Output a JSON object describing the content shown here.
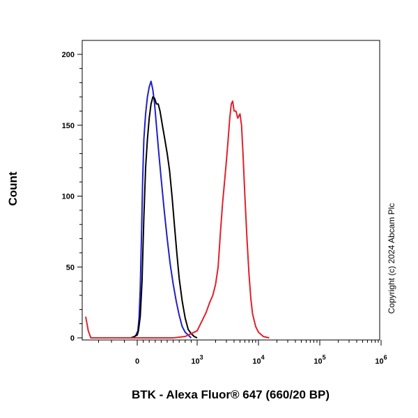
{
  "chart_data": {
    "type": "line",
    "xlabel": "BTK - Alexa Fluor® 647 (660/20 BP)",
    "ylabel": "Count",
    "ylim": [
      0,
      200
    ],
    "xscale": "biexponential",
    "xlim": [
      -400,
      1000000
    ],
    "x_ticks": [
      {
        "value": 0,
        "base": "0",
        "exp": ""
      },
      {
        "value": 1000,
        "base": "10",
        "exp": "3"
      },
      {
        "value": 10000,
        "base": "10",
        "exp": "4"
      },
      {
        "value": 100000,
        "base": "10",
        "exp": "5"
      },
      {
        "value": 1000000,
        "base": "10",
        "exp": "6"
      }
    ],
    "y_ticks": [
      0,
      50,
      100,
      150,
      200
    ],
    "grid": false,
    "legend": "none",
    "series": [
      {
        "color": "#1f1fc8",
        "points": [
          [
            -30,
            0
          ],
          [
            -10,
            2
          ],
          [
            10,
            5
          ],
          [
            30,
            14
          ],
          [
            50,
            35
          ],
          [
            70,
            70
          ],
          [
            90,
            110
          ],
          [
            110,
            140
          ],
          [
            140,
            158
          ],
          [
            170,
            170
          ],
          [
            200,
            177
          ],
          [
            230,
            181
          ],
          [
            260,
            175
          ],
          [
            290,
            165
          ],
          [
            320,
            150
          ],
          [
            360,
            130
          ],
          [
            400,
            112
          ],
          [
            450,
            90
          ],
          [
            500,
            70
          ],
          [
            550,
            52
          ],
          [
            600,
            38
          ],
          [
            650,
            26
          ],
          [
            700,
            16
          ],
          [
            750,
            8
          ],
          [
            800,
            4
          ],
          [
            850,
            2
          ],
          [
            900,
            0
          ]
        ]
      },
      {
        "color": "#000000",
        "points": [
          [
            -50,
            0
          ],
          [
            -20,
            1
          ],
          [
            0,
            2
          ],
          [
            20,
            5
          ],
          [
            50,
            15
          ],
          [
            80,
            40
          ],
          [
            110,
            85
          ],
          [
            140,
            120
          ],
          [
            170,
            140
          ],
          [
            200,
            155
          ],
          [
            230,
            165
          ],
          [
            260,
            170
          ],
          [
            290,
            169
          ],
          [
            320,
            165
          ],
          [
            350,
            165
          ],
          [
            380,
            160
          ],
          [
            420,
            150
          ],
          [
            460,
            140
          ],
          [
            500,
            130
          ],
          [
            540,
            118
          ],
          [
            580,
            100
          ],
          [
            620,
            80
          ],
          [
            660,
            60
          ],
          [
            700,
            42
          ],
          [
            750,
            26
          ],
          [
            800,
            14
          ],
          [
            850,
            6
          ],
          [
            900,
            3
          ],
          [
            950,
            1
          ],
          [
            1000,
            0
          ]
        ]
      },
      {
        "color": "#e0202a",
        "points": [
          [
            -400,
            15
          ],
          [
            -380,
            5
          ],
          [
            -360,
            0
          ],
          [
            -200,
            0
          ],
          [
            0,
            0
          ],
          [
            300,
            0
          ],
          [
            600,
            0
          ],
          [
            800,
            1
          ],
          [
            1000,
            5
          ],
          [
            1200,
            12
          ],
          [
            1400,
            18
          ],
          [
            1600,
            25
          ],
          [
            1800,
            30
          ],
          [
            2000,
            38
          ],
          [
            2200,
            50
          ],
          [
            2400,
            75
          ],
          [
            2600,
            95
          ],
          [
            2800,
            110
          ],
          [
            3000,
            125
          ],
          [
            3200,
            140
          ],
          [
            3400,
            155
          ],
          [
            3600,
            165
          ],
          [
            3800,
            167
          ],
          [
            4000,
            160
          ],
          [
            4300,
            160
          ],
          [
            4600,
            155
          ],
          [
            5000,
            158
          ],
          [
            5300,
            150
          ],
          [
            5600,
            130
          ],
          [
            6000,
            100
          ],
          [
            6500,
            70
          ],
          [
            7000,
            45
          ],
          [
            7500,
            28
          ],
          [
            8000,
            17
          ],
          [
            9000,
            8
          ],
          [
            10000,
            4
          ],
          [
            12000,
            1
          ],
          [
            15000,
            0
          ]
        ]
      }
    ]
  },
  "copyright": "Copyright (c) 2024 Abcam Plc"
}
